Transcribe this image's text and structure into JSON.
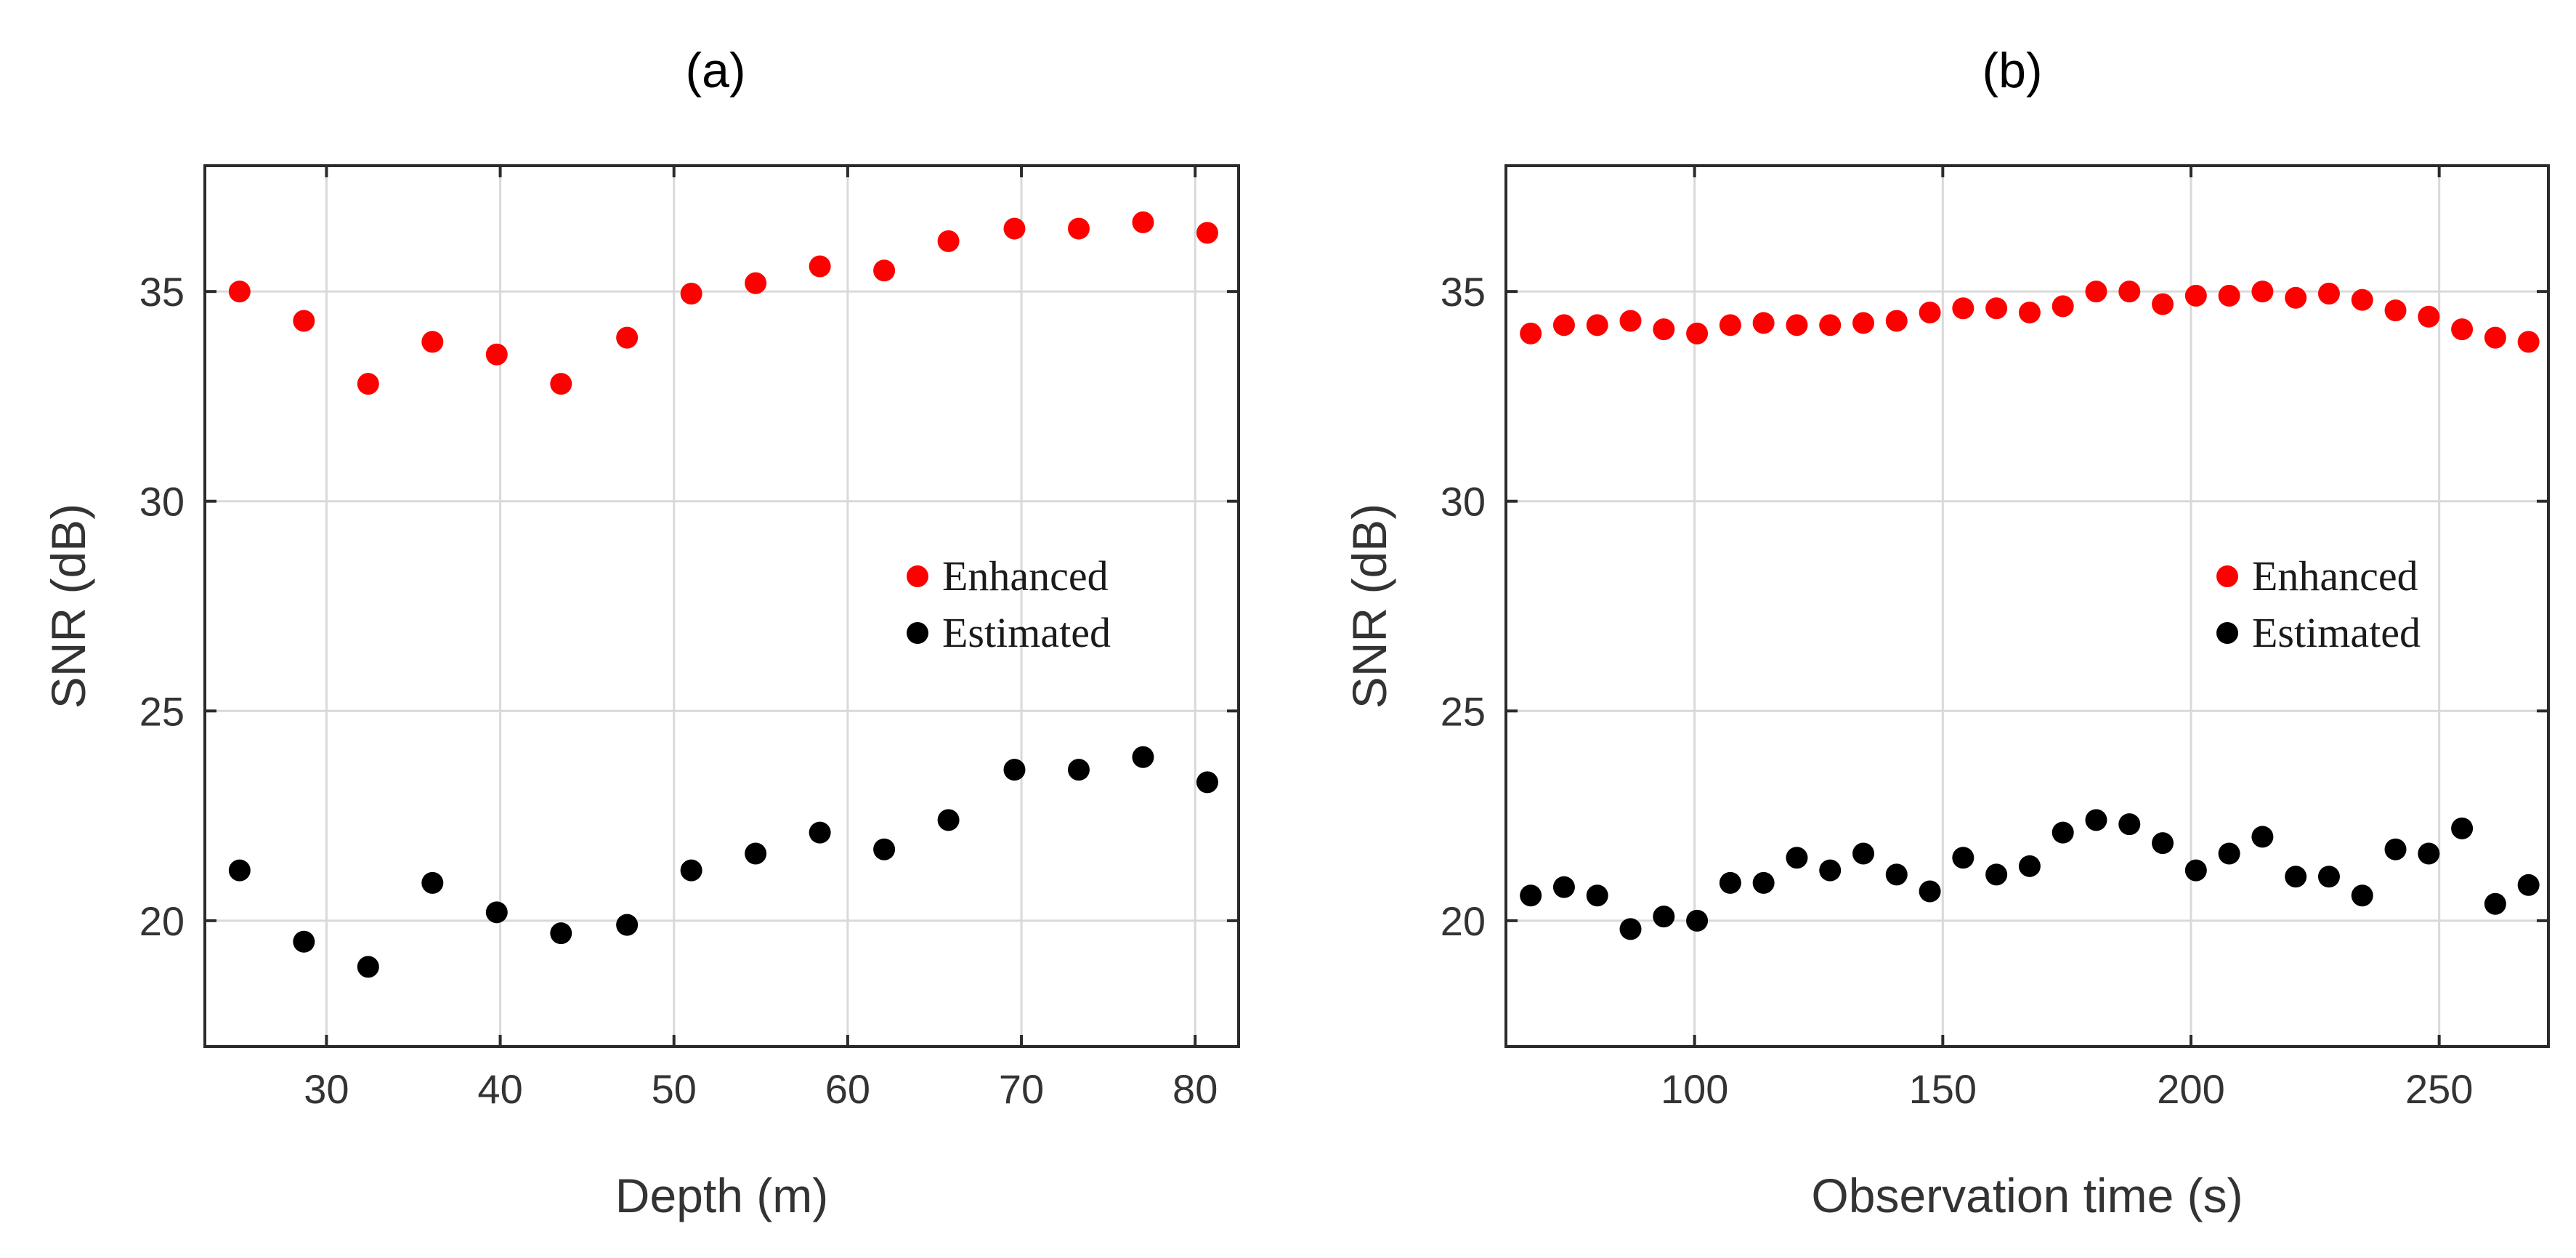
{
  "chart_data": [
    {
      "type": "scatter",
      "title": "(a)",
      "xlabel": "Depth (m)",
      "ylabel": "SNR (dB)",
      "xlim": [
        23,
        82.5
      ],
      "ylim": [
        17,
        38
      ],
      "xticks": [
        30,
        40,
        50,
        60,
        70,
        80
      ],
      "yticks": [
        20,
        25,
        30,
        35
      ],
      "grid": true,
      "legend_position": "right",
      "series": [
        {
          "name": "Enhanced",
          "color": "#ff0000",
          "x": [
            25,
            28.7,
            32.4,
            36.1,
            39.8,
            43.5,
            47.3,
            51,
            54.7,
            58.4,
            62.1,
            65.8,
            69.6,
            73.3,
            77,
            80.7
          ],
          "y": [
            35.0,
            34.3,
            32.8,
            33.8,
            33.5,
            32.8,
            33.9,
            34.95,
            35.2,
            35.6,
            35.5,
            36.2,
            36.5,
            36.5,
            36.65,
            36.4
          ]
        },
        {
          "name": "Estimated",
          "color": "#000000",
          "x": [
            25,
            28.7,
            32.4,
            36.1,
            39.8,
            43.5,
            47.3,
            51,
            54.7,
            58.4,
            62.1,
            65.8,
            69.6,
            73.3,
            77,
            80.7
          ],
          "y": [
            21.2,
            19.5,
            18.9,
            20.9,
            20.2,
            19.7,
            19.9,
            21.2,
            21.6,
            22.1,
            21.7,
            22.4,
            23.6,
            23.6,
            23.9,
            23.3
          ]
        }
      ]
    },
    {
      "type": "scatter",
      "title": "(b)",
      "xlabel": "Observation time (s)",
      "ylabel": "SNR (dB)",
      "xlim": [
        62,
        272
      ],
      "ylim": [
        17,
        38
      ],
      "xticks": [
        100,
        150,
        200,
        250
      ],
      "yticks": [
        20,
        25,
        30,
        35
      ],
      "grid": true,
      "legend_position": "right",
      "series": [
        {
          "name": "Enhanced",
          "color": "#ff0000",
          "x": [
            67,
            73.7,
            80.4,
            87.1,
            93.8,
            100.5,
            107.2,
            113.9,
            120.6,
            127.3,
            134,
            140.7,
            147.4,
            154.1,
            160.8,
            167.5,
            174.2,
            180.9,
            187.6,
            194.3,
            201,
            207.7,
            214.4,
            221.1,
            227.8,
            234.5,
            241.2,
            247.9,
            254.6,
            261.3,
            268
          ],
          "y": [
            34.0,
            34.2,
            34.2,
            34.3,
            34.1,
            34.0,
            34.2,
            34.25,
            34.2,
            34.2,
            34.25,
            34.3,
            34.5,
            34.6,
            34.6,
            34.5,
            34.65,
            35.0,
            35.0,
            34.7,
            34.9,
            34.9,
            35.0,
            34.85,
            34.95,
            34.8,
            34.55,
            34.4,
            34.1,
            33.9,
            33.8
          ]
        },
        {
          "name": "Estimated",
          "color": "#000000",
          "x": [
            67,
            73.7,
            80.4,
            87.1,
            93.8,
            100.5,
            107.2,
            113.9,
            120.6,
            127.3,
            134,
            140.7,
            147.4,
            154.1,
            160.8,
            167.5,
            174.2,
            180.9,
            187.6,
            194.3,
            201,
            207.7,
            214.4,
            221.1,
            227.8,
            234.5,
            241.2,
            247.9,
            254.6,
            261.3,
            268
          ],
          "y": [
            20.6,
            20.8,
            20.6,
            19.8,
            20.1,
            20.0,
            20.9,
            20.9,
            21.5,
            21.2,
            21.6,
            21.1,
            20.7,
            21.5,
            21.1,
            21.3,
            22.1,
            22.4,
            22.3,
            21.85,
            21.2,
            21.6,
            22.0,
            21.05,
            21.05,
            20.6,
            21.7,
            21.6,
            22.2,
            20.4,
            20.85
          ]
        }
      ]
    }
  ]
}
